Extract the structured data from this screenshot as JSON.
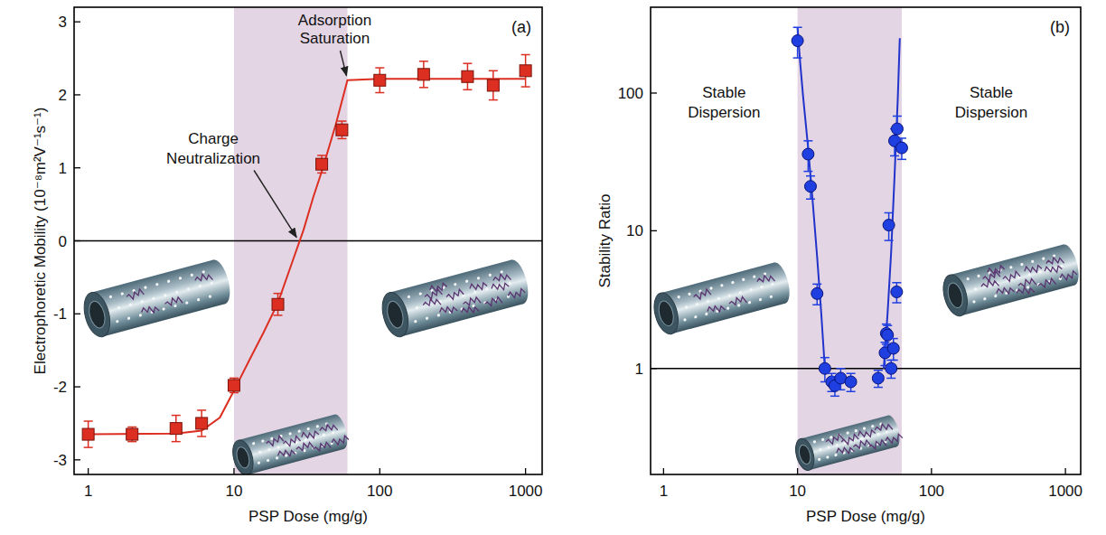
{
  "chart_data": [
    {
      "type": "scatter",
      "title": "(a)",
      "x_label": "PSP Dose (mg/g)",
      "y_label": "Electrophoretic Mobility (10⁻⁸m²V⁻¹s⁻¹)",
      "log": "x",
      "xlim": [
        0.8,
        1300
      ],
      "xticks": [
        1,
        10,
        100,
        1000
      ],
      "ylim": [
        -3.2,
        3.2
      ],
      "yticks": [
        -3,
        -2,
        -1,
        0,
        1,
        2,
        3
      ],
      "shaded_region": [
        10,
        60
      ],
      "reference_line": 0,
      "series": [
        {
          "type": "scatter",
          "marker": "square",
          "color": "#dc2f22",
          "x": [
            1,
            2,
            4,
            6,
            10,
            20,
            40,
            55,
            100,
            200,
            400,
            600,
            1000
          ],
          "values": [
            -2.65,
            -2.65,
            -2.57,
            -2.5,
            -1.98,
            -0.87,
            1.05,
            1.52,
            2.2,
            2.28,
            2.25,
            2.13,
            2.33
          ],
          "errors": [
            0.18,
            0.1,
            0.18,
            0.18,
            0.1,
            0.15,
            0.12,
            0.12,
            0.17,
            0.18,
            0.18,
            0.2,
            0.22
          ]
        },
        {
          "type": "line",
          "line_style": "solid",
          "color": "#dc2f22",
          "x": [
            1,
            4,
            6,
            8,
            10,
            13,
            16,
            20,
            25,
            30,
            35,
            40,
            50,
            60,
            100,
            1000
          ],
          "values": [
            -2.65,
            -2.64,
            -2.6,
            -2.42,
            -2.05,
            -1.6,
            -1.25,
            -0.85,
            -0.3,
            0.15,
            0.6,
            0.95,
            1.6,
            2.2,
            2.22,
            2.22
          ]
        }
      ],
      "annotations": [
        {
          "text": "Adsorption Saturation",
          "x": 60,
          "y": 2.2
        },
        {
          "text": "Charge Neutralization",
          "x": 28,
          "y": 0
        }
      ]
    },
    {
      "type": "scatter",
      "title": "(b)",
      "x_label": "PSP Dose (mg/g)",
      "y_label": "Stability Ratio",
      "log": true,
      "xlim": [
        0.8,
        1300
      ],
      "xticks": [
        1,
        10,
        100,
        1000
      ],
      "ylim": [
        0.17,
        420
      ],
      "yticks": [
        1,
        10,
        100
      ],
      "shaded_region": [
        10,
        60
      ],
      "reference_line": 1,
      "series": [
        {
          "type": "scatter",
          "marker": "circle",
          "color": "#1f3fe0",
          "x": [
            10,
            12,
            12.5,
            14,
            16,
            18,
            19,
            21,
            25,
            40,
            45,
            46,
            47,
            48,
            50,
            52,
            53,
            55,
            55.5,
            60
          ],
          "values": [
            240,
            36,
            21,
            3.5,
            1.0,
            0.8,
            0.75,
            0.85,
            0.8,
            0.85,
            1.3,
            1.8,
            1.75,
            11,
            1.0,
            1.4,
            45,
            3.6,
            55,
            40
          ],
          "errors": [
            60,
            9,
            4,
            0.6,
            0.2,
            0.12,
            0.12,
            0.15,
            0.12,
            0.12,
            0.25,
            0.3,
            0.3,
            2.5,
            0.15,
            0.25,
            10,
            0.6,
            13,
            7
          ]
        },
        {
          "type": "line",
          "line_style": "solid",
          "color": "#2233cc",
          "x": [
            10,
            10.5,
            11,
            12,
            13,
            14,
            15,
            16,
            30,
            44,
            47,
            50,
            53,
            56,
            58
          ],
          "values": [
            300,
            160,
            95,
            40,
            16,
            6.5,
            2.6,
            1.0,
            null,
            1.0,
            2.5,
            7,
            25,
            90,
            250
          ]
        }
      ],
      "annotations": [
        {
          "text": "Stable Dispersion"
        },
        {
          "text": "Stable Dispersion"
        }
      ]
    }
  ]
}
